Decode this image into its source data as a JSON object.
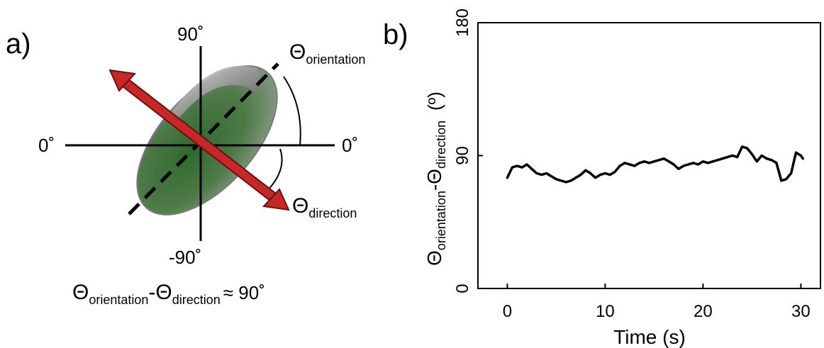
{
  "panel_a": {
    "label": "a)",
    "angle_top": "90˚",
    "angle_bottom": "-90˚",
    "angle_left": "0˚",
    "angle_right": "0˚",
    "theta_symbol": "Θ",
    "orientation_sub": "orientation",
    "direction_sub": "direction",
    "equation": {
      "theta1": "Θ",
      "sub1": "orientation",
      "minus": "-Θ",
      "sub2": "direction",
      "approx": "≈ 90˚"
    },
    "colors": {
      "arrow": "#c62828",
      "ellipsoid": "#4a6b45",
      "ellipsoid_rim": "#8a8a8a"
    }
  },
  "panel_b": {
    "label": "b)",
    "ylabel_theta1": "Θ",
    "ylabel_sub1": "orientation",
    "ylabel_minus": "-Θ",
    "ylabel_sub2": "direction",
    "ylabel_unit": "(º)"
  },
  "chart_data": {
    "type": "line",
    "xlabel": "Time (s)",
    "ylabel": "Θorientation-Θdirection (º)",
    "xlim": [
      -3,
      32
    ],
    "ylim": [
      0,
      180
    ],
    "xticks": [
      0,
      10,
      20,
      30
    ],
    "yticks": [
      0,
      90,
      180
    ],
    "grid": false,
    "series": [
      {
        "x": [
          0,
          0.5,
          1,
          1.5,
          2,
          2.5,
          3,
          3.5,
          4,
          4.5,
          5,
          5.5,
          6,
          6.5,
          7,
          7.5,
          8,
          8.5,
          9,
          9.5,
          10,
          10.5,
          11,
          11.5,
          12,
          12.5,
          13,
          13.5,
          14,
          14.5,
          15,
          15.5,
          16,
          16.5,
          17,
          17.5,
          18,
          18.5,
          19,
          19.5,
          20,
          20.5,
          21,
          21.5,
          22,
          22.5,
          23,
          23.5,
          24,
          24.5,
          25,
          25.5,
          26,
          26.5,
          27,
          27.5,
          28,
          28.5,
          29,
          29.5,
          30,
          30.2
        ],
        "values": [
          75,
          82,
          83,
          82,
          84,
          81,
          78,
          77,
          78,
          76,
          74,
          73,
          72,
          73,
          75,
          77,
          80,
          78,
          75,
          77,
          78,
          77,
          79,
          83,
          85,
          84,
          83,
          85,
          86,
          85,
          86,
          87,
          88,
          86,
          84,
          81,
          83,
          84,
          85,
          84,
          86,
          85,
          86,
          87,
          88,
          89,
          90,
          89,
          96,
          95,
          91,
          86,
          90,
          88,
          87,
          85,
          73,
          74,
          78,
          92,
          90,
          88
        ]
      }
    ]
  }
}
